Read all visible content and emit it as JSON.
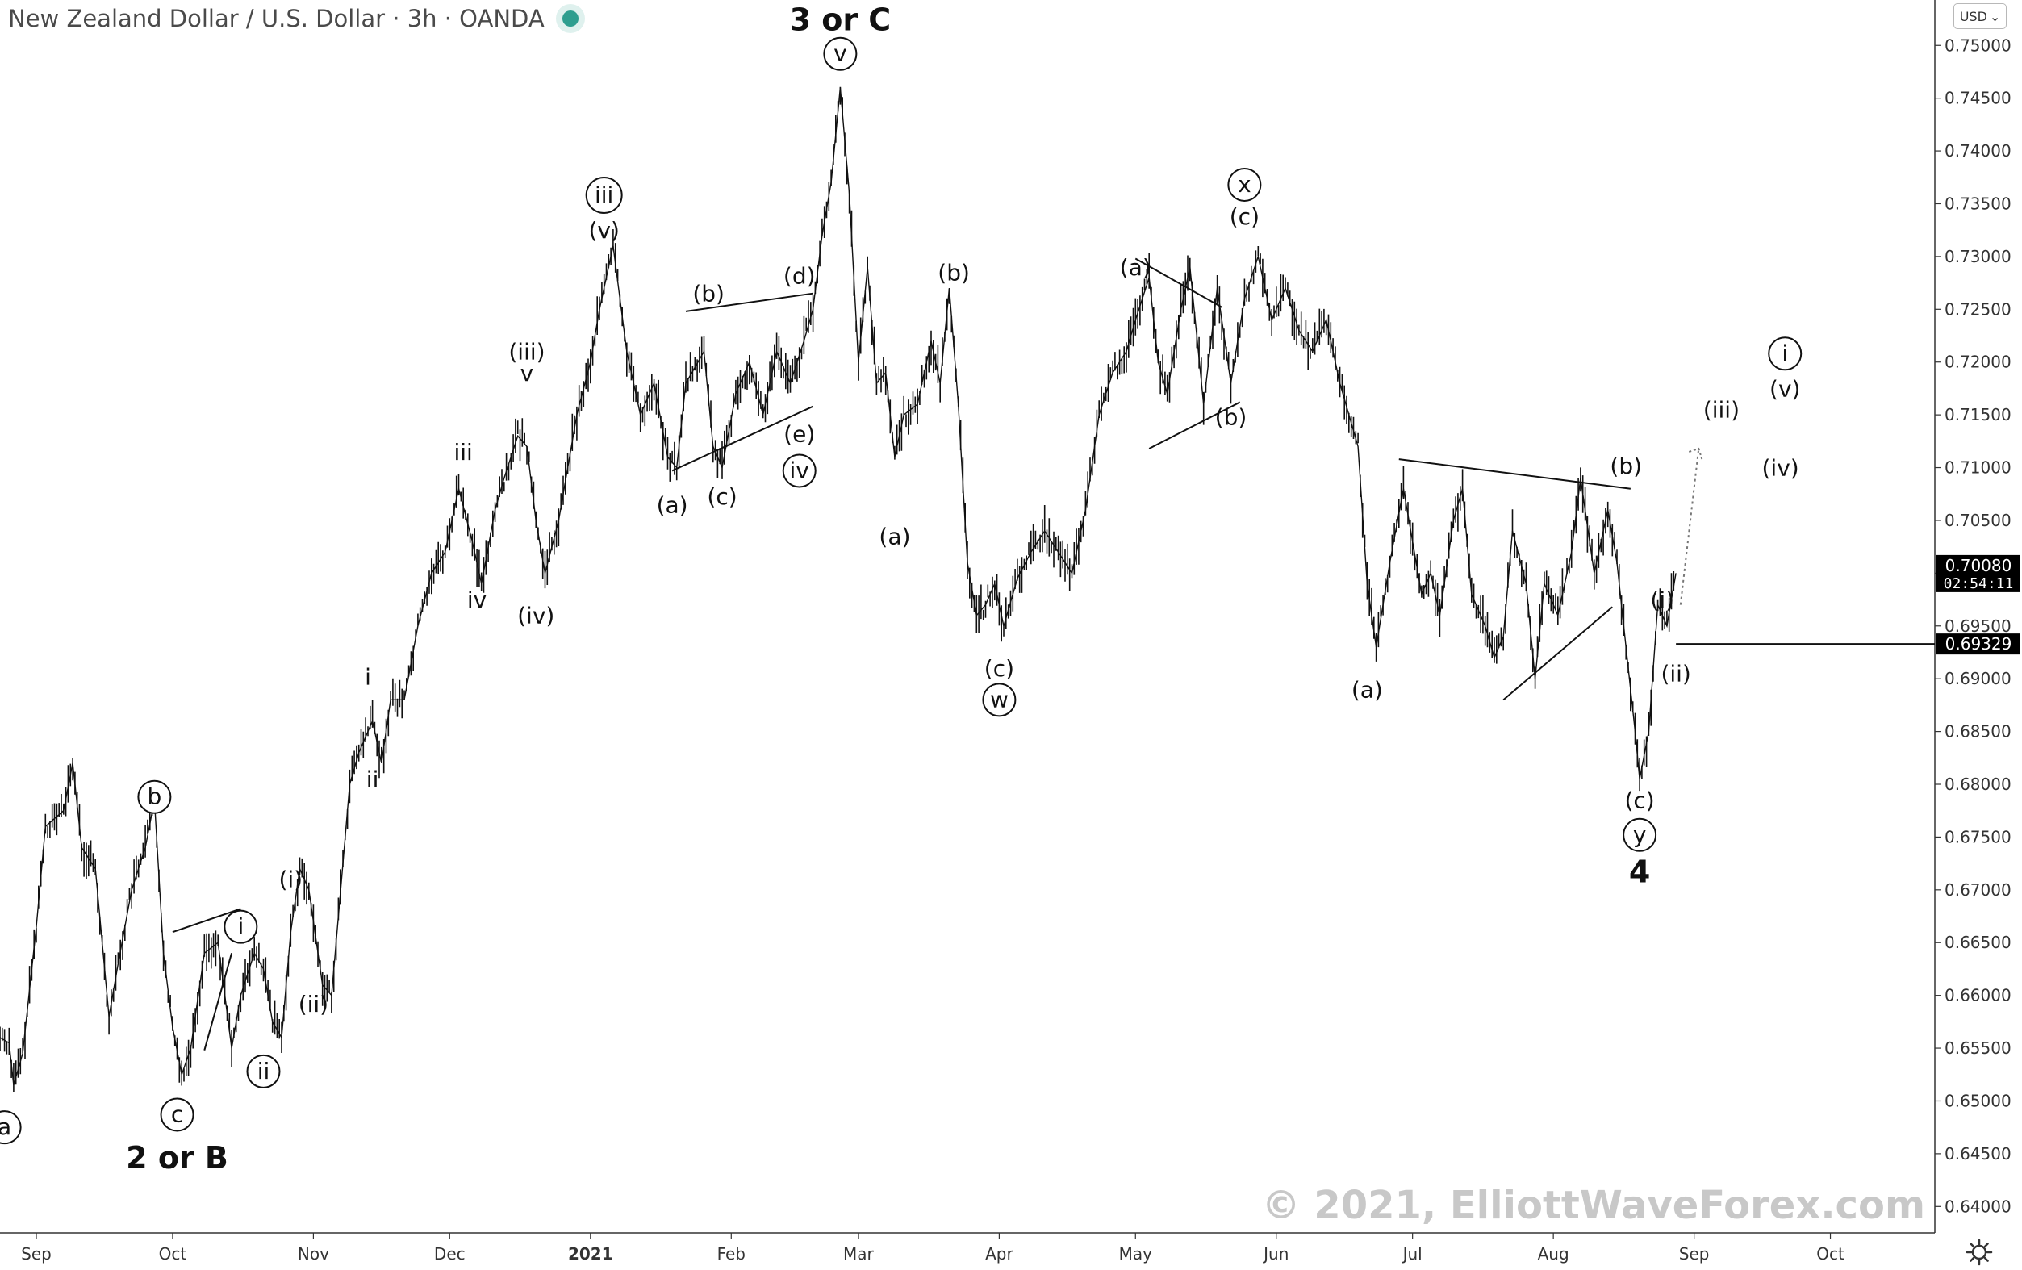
{
  "header": {
    "title": "New Zealand Dollar / U.S. Dollar · 3h · OANDA"
  },
  "currency_selector": {
    "label": "USD"
  },
  "watermark": "© 2021, ElliottWaveForex.com",
  "icons": {
    "status": "market-status-dot-icon",
    "currency_chevron": "chevron-down-icon",
    "settings": "gear-icon"
  },
  "colors": {
    "candles": "#111111",
    "price_tag": "#000000",
    "status_dot": "#2e9e8f",
    "watermark": "#c8c8c8",
    "axis_text": "#333333"
  },
  "chart_data": {
    "type": "line",
    "title": "New Zealand Dollar / U.S. Dollar · 3h · OANDA",
    "xlabel": "",
    "ylabel": "",
    "x_range": [
      "2020-08-24",
      "2021-10-24"
    ],
    "ylim": [
      0.6375,
      0.7543
    ],
    "grid": false,
    "x_ticks": [
      {
        "label": "Sep",
        "date": "2020-09-01"
      },
      {
        "label": "Oct",
        "date": "2020-10-01"
      },
      {
        "label": "Nov",
        "date": "2020-11-01"
      },
      {
        "label": "Dec",
        "date": "2020-12-01"
      },
      {
        "label": "2021",
        "date": "2021-01-01"
      },
      {
        "label": "Feb",
        "date": "2021-02-01"
      },
      {
        "label": "Mar",
        "date": "2021-03-01"
      },
      {
        "label": "Apr",
        "date": "2021-04-01"
      },
      {
        "label": "May",
        "date": "2021-05-01"
      },
      {
        "label": "Jun",
        "date": "2021-06-01"
      },
      {
        "label": "Jul",
        "date": "2021-07-01"
      },
      {
        "label": "Aug",
        "date": "2021-08-01"
      },
      {
        "label": "Sep",
        "date": "2021-09-01"
      },
      {
        "label": "Oct",
        "date": "2021-10-01"
      }
    ],
    "y_ticks": [
      "0.64000",
      "0.64500",
      "0.65000",
      "0.65500",
      "0.66000",
      "0.66500",
      "0.67000",
      "0.67500",
      "0.68000",
      "0.68500",
      "0.69000",
      "0.69500",
      "0.70000",
      "0.70500",
      "0.71000",
      "0.71500",
      "0.72000",
      "0.72500",
      "0.73000",
      "0.73500",
      "0.74000",
      "0.74500",
      "0.75000"
    ],
    "series": [
      {
        "values": [
          [
            "2020-08-24",
            0.656
          ],
          [
            "2020-08-26",
            0.6555
          ],
          [
            "2020-08-27",
            0.6515
          ],
          [
            "2020-08-29",
            0.6545
          ],
          [
            "2020-09-01",
            0.6665
          ],
          [
            "2020-09-03",
            0.676
          ],
          [
            "2020-09-07",
            0.6775
          ],
          [
            "2020-09-09",
            0.682
          ],
          [
            "2020-09-11",
            0.674
          ],
          [
            "2020-09-14",
            0.672
          ],
          [
            "2020-09-17",
            0.658
          ],
          [
            "2020-09-19",
            0.663
          ],
          [
            "2020-09-22",
            0.67
          ],
          [
            "2020-09-25",
            0.674
          ],
          [
            "2020-09-27",
            0.6785
          ],
          [
            "2020-09-29",
            0.664
          ],
          [
            "2020-10-01",
            0.657
          ],
          [
            "2020-10-03",
            0.6525
          ],
          [
            "2020-10-05",
            0.655
          ],
          [
            "2020-10-08",
            0.664
          ],
          [
            "2020-10-11",
            0.665
          ],
          [
            "2020-10-14",
            0.655
          ],
          [
            "2020-10-16",
            0.66
          ],
          [
            "2020-10-19",
            0.664
          ],
          [
            "2020-10-21",
            0.6625
          ],
          [
            "2020-10-23",
            0.6575
          ],
          [
            "2020-10-25",
            0.656
          ],
          [
            "2020-10-27",
            0.666
          ],
          [
            "2020-10-29",
            0.672
          ],
          [
            "2020-10-31",
            0.67
          ],
          [
            "2020-11-03",
            0.661
          ],
          [
            "2020-11-05",
            0.66
          ],
          [
            "2020-11-07",
            0.67
          ],
          [
            "2020-11-09",
            0.68
          ],
          [
            "2020-11-11",
            0.683
          ],
          [
            "2020-11-14",
            0.686
          ],
          [
            "2020-11-16",
            0.682
          ],
          [
            "2020-11-18",
            0.688
          ],
          [
            "2020-11-21",
            0.688
          ],
          [
            "2020-11-24",
            0.695
          ],
          [
            "2020-11-27",
            0.7
          ],
          [
            "2020-11-30",
            0.702
          ],
          [
            "2020-12-03",
            0.708
          ],
          [
            "2020-12-06",
            0.703
          ],
          [
            "2020-12-08",
            0.699
          ],
          [
            "2020-12-11",
            0.706
          ],
          [
            "2020-12-13",
            0.709
          ],
          [
            "2020-12-16",
            0.713
          ],
          [
            "2020-12-18",
            0.712
          ],
          [
            "2020-12-20",
            0.705
          ],
          [
            "2020-12-22",
            0.7
          ],
          [
            "2020-12-25",
            0.705
          ],
          [
            "2020-12-29",
            0.715
          ],
          [
            "2021-01-01",
            0.72
          ],
          [
            "2021-01-03",
            0.725
          ],
          [
            "2021-01-06",
            0.731
          ],
          [
            "2021-01-09",
            0.721
          ],
          [
            "2021-01-12",
            0.715
          ],
          [
            "2021-01-15",
            0.718
          ],
          [
            "2021-01-18",
            0.711
          ],
          [
            "2021-01-20",
            0.71
          ],
          [
            "2021-01-22",
            0.718
          ],
          [
            "2021-01-26",
            0.721
          ],
          [
            "2021-01-28",
            0.712
          ],
          [
            "2021-01-30",
            0.71
          ],
          [
            "2021-02-02",
            0.717
          ],
          [
            "2021-02-05",
            0.72
          ],
          [
            "2021-02-08",
            0.715
          ],
          [
            "2021-02-11",
            0.721
          ],
          [
            "2021-02-14",
            0.718
          ],
          [
            "2021-02-17",
            0.722
          ],
          [
            "2021-02-19",
            0.725
          ],
          [
            "2021-02-21",
            0.732
          ],
          [
            "2021-02-23",
            0.737
          ],
          [
            "2021-02-25",
            0.746
          ],
          [
            "2021-02-27",
            0.736
          ],
          [
            "2021-03-01",
            0.72
          ],
          [
            "2021-03-03",
            0.729
          ],
          [
            "2021-03-05",
            0.718
          ],
          [
            "2021-03-07",
            0.719
          ],
          [
            "2021-03-09",
            0.711
          ],
          [
            "2021-03-11",
            0.715
          ],
          [
            "2021-03-14",
            0.716
          ],
          [
            "2021-03-17",
            0.722
          ],
          [
            "2021-03-19",
            0.718
          ],
          [
            "2021-03-21",
            0.727
          ],
          [
            "2021-03-23",
            0.716
          ],
          [
            "2021-03-25",
            0.701
          ],
          [
            "2021-03-27",
            0.696
          ],
          [
            "2021-03-29",
            0.697
          ],
          [
            "2021-03-31",
            0.699
          ],
          [
            "2021-04-02",
            0.695
          ],
          [
            "2021-04-05",
            0.6995
          ],
          [
            "2021-04-08",
            0.702
          ],
          [
            "2021-04-11",
            0.704
          ],
          [
            "2021-04-14",
            0.702
          ],
          [
            "2021-04-17",
            0.7
          ],
          [
            "2021-04-20",
            0.706
          ],
          [
            "2021-04-23",
            0.715
          ],
          [
            "2021-04-26",
            0.719
          ],
          [
            "2021-04-29",
            0.721
          ],
          [
            "2021-05-01",
            0.724
          ],
          [
            "2021-05-04",
            0.728
          ],
          [
            "2021-05-06",
            0.72
          ],
          [
            "2021-05-08",
            0.717
          ],
          [
            "2021-05-11",
            0.725
          ],
          [
            "2021-05-13",
            0.729
          ],
          [
            "2021-05-16",
            0.716
          ],
          [
            "2021-05-19",
            0.727
          ],
          [
            "2021-05-22",
            0.718
          ],
          [
            "2021-05-25",
            0.726
          ],
          [
            "2021-05-28",
            0.73
          ],
          [
            "2021-05-31",
            0.724
          ],
          [
            "2021-06-03",
            0.727
          ],
          [
            "2021-06-06",
            0.723
          ],
          [
            "2021-06-09",
            0.721
          ],
          [
            "2021-06-12",
            0.724
          ],
          [
            "2021-06-15",
            0.718
          ],
          [
            "2021-06-17",
            0.715
          ],
          [
            "2021-06-19",
            0.712
          ],
          [
            "2021-06-21",
            0.699
          ],
          [
            "2021-06-23",
            0.693
          ],
          [
            "2021-06-26",
            0.701
          ],
          [
            "2021-06-29",
            0.708
          ],
          [
            "2021-07-01",
            0.703
          ],
          [
            "2021-07-03",
            0.698
          ],
          [
            "2021-07-05",
            0.7
          ],
          [
            "2021-07-07",
            0.696
          ],
          [
            "2021-07-10",
            0.705
          ],
          [
            "2021-07-12",
            0.708
          ],
          [
            "2021-07-14",
            0.698
          ],
          [
            "2021-07-17",
            0.695
          ],
          [
            "2021-07-19",
            0.692
          ],
          [
            "2021-07-21",
            0.694
          ],
          [
            "2021-07-23",
            0.704
          ],
          [
            "2021-07-26",
            0.699
          ],
          [
            "2021-07-28",
            0.69
          ],
          [
            "2021-07-30",
            0.699
          ],
          [
            "2021-08-02",
            0.696
          ],
          [
            "2021-08-05",
            0.702
          ],
          [
            "2021-08-07",
            0.709
          ],
          [
            "2021-08-10",
            0.7
          ],
          [
            "2021-08-13",
            0.706
          ],
          [
            "2021-08-15",
            0.701
          ],
          [
            "2021-08-17",
            0.693
          ],
          [
            "2021-08-19",
            0.685
          ],
          [
            "2021-08-20",
            0.6805
          ],
          [
            "2021-08-22",
            0.685
          ],
          [
            "2021-08-24",
            0.697
          ],
          [
            "2021-08-26",
            0.695
          ],
          [
            "2021-08-28",
            0.7
          ]
        ]
      }
    ],
    "price_labels": [
      {
        "value": 0.7008,
        "label": "0.70080",
        "countdown": "02:54:11"
      },
      {
        "value": 0.69329,
        "label": "0.69329"
      }
    ],
    "annotations": [
      {
        "text": "a",
        "circled": true,
        "date": "2020-08-25",
        "price": 0.6475
      },
      {
        "text": "b",
        "circled": true,
        "date": "2020-09-27",
        "price": 0.6788
      },
      {
        "text": "c",
        "circled": true,
        "date": "2020-10-02",
        "price": 0.6487
      },
      {
        "text": "2 or B",
        "bold": true,
        "date": "2020-10-02",
        "price": 0.6447
      },
      {
        "text": "i",
        "circled": true,
        "date": "2020-10-16",
        "price": 0.6665
      },
      {
        "text": "ii",
        "circled": true,
        "date": "2020-10-21",
        "price": 0.6528
      },
      {
        "text": "(i)",
        "date": "2020-10-27",
        "price": 0.671
      },
      {
        "text": "(ii)",
        "date": "2020-11-01",
        "price": 0.6592
      },
      {
        "text": "i",
        "date": "2020-11-13",
        "price": 0.6902
      },
      {
        "text": "ii",
        "date": "2020-11-14",
        "price": 0.6805
      },
      {
        "text": "iii",
        "date": "2020-12-04",
        "price": 0.7115
      },
      {
        "text": "iv",
        "date": "2020-12-07",
        "price": 0.6975
      },
      {
        "text": "(iii)",
        "date": "2020-12-18",
        "price": 0.721
      },
      {
        "text": "v",
        "date": "2020-12-18",
        "price": 0.719
      },
      {
        "text": "(iv)",
        "date": "2020-12-20",
        "price": 0.696
      },
      {
        "text": "iii",
        "circled": true,
        "date": "2021-01-04",
        "price": 0.7358
      },
      {
        "text": "(v)",
        "date": "2021-01-04",
        "price": 0.7325
      },
      {
        "text": "(a)",
        "date": "2021-01-19",
        "price": 0.7065
      },
      {
        "text": "(b)",
        "date": "2021-01-27",
        "price": 0.7265
      },
      {
        "text": "(c)",
        "date": "2021-01-30",
        "price": 0.7073
      },
      {
        "text": "(d)",
        "date": "2021-02-16",
        "price": 0.7282
      },
      {
        "text": "(e)",
        "date": "2021-02-16",
        "price": 0.7132
      },
      {
        "text": "iv",
        "circled": true,
        "date": "2021-02-16",
        "price": 0.7097
      },
      {
        "text": "v",
        "circled": true,
        "date": "2021-02-25",
        "price": 0.7492
      },
      {
        "text": "3 or C",
        "bold": true,
        "date": "2021-02-25",
        "price": 0.7525
      },
      {
        "text": "(a)",
        "date": "2021-03-09",
        "price": 0.7035
      },
      {
        "text": "(b)",
        "date": "2021-03-22",
        "price": 0.7285
      },
      {
        "text": "(c)",
        "date": "2021-04-01",
        "price": 0.691
      },
      {
        "text": "w",
        "circled": true,
        "date": "2021-04-01",
        "price": 0.688
      },
      {
        "text": "(a)",
        "date": "2021-05-01",
        "price": 0.729
      },
      {
        "text": "(b)",
        "date": "2021-05-22",
        "price": 0.7148
      },
      {
        "text": "x",
        "circled": true,
        "date": "2021-05-25",
        "price": 0.7368
      },
      {
        "text": "(c)",
        "date": "2021-05-25",
        "price": 0.7338
      },
      {
        "text": "(a)",
        "date": "2021-06-21",
        "price": 0.689
      },
      {
        "text": "(b)",
        "date": "2021-08-17",
        "price": 0.7102
      },
      {
        "text": "(c)",
        "date": "2021-08-20",
        "price": 0.6785
      },
      {
        "text": "y",
        "circled": true,
        "date": "2021-08-20",
        "price": 0.6752
      },
      {
        "text": "4",
        "bold": true,
        "date": "2021-08-20",
        "price": 0.6718
      },
      {
        "text": "(i)",
        "date": "2021-08-25",
        "price": 0.6975
      },
      {
        "text": "(ii)",
        "date": "2021-08-28",
        "price": 0.6905
      },
      {
        "text": "(iii)",
        "date": "2021-09-07",
        "price": 0.7155
      },
      {
        "text": "(iv)",
        "date": "2021-09-20",
        "price": 0.71
      },
      {
        "text": "i",
        "circled": true,
        "date": "2021-09-21",
        "price": 0.7208
      },
      {
        "text": "(v)",
        "date": "2021-09-21",
        "price": 0.7175
      }
    ],
    "trendlines": [
      {
        "from": [
          "2020-10-01",
          0.666
        ],
        "to": [
          "2020-10-16",
          0.6682
        ]
      },
      {
        "from": [
          "2020-10-08",
          0.6548
        ],
        "to": [
          "2020-10-14",
          0.664
        ]
      },
      {
        "from": [
          "2021-01-22",
          0.7248
        ],
        "to": [
          "2021-02-19",
          0.7265
        ]
      },
      {
        "from": [
          "2021-01-19",
          0.7097
        ],
        "to": [
          "2021-02-19",
          0.7158
        ]
      },
      {
        "from": [
          "2021-05-01",
          0.7298
        ],
        "to": [
          "2021-05-20",
          0.7252
        ]
      },
      {
        "from": [
          "2021-05-04",
          0.7118
        ],
        "to": [
          "2021-05-24",
          0.7162
        ]
      },
      {
        "from": [
          "2021-06-28",
          0.7108
        ],
        "to": [
          "2021-08-18",
          0.708
        ]
      },
      {
        "from": [
          "2021-07-21",
          0.688
        ],
        "to": [
          "2021-08-14",
          0.6968
        ]
      }
    ],
    "horizontal_lines": [
      {
        "price": 0.69329,
        "from": "2021-08-28"
      }
    ],
    "projection": {
      "from": [
        "2021-08-29",
        0.697
      ],
      "to": [
        "2021-09-02",
        0.7118
      ]
    }
  }
}
